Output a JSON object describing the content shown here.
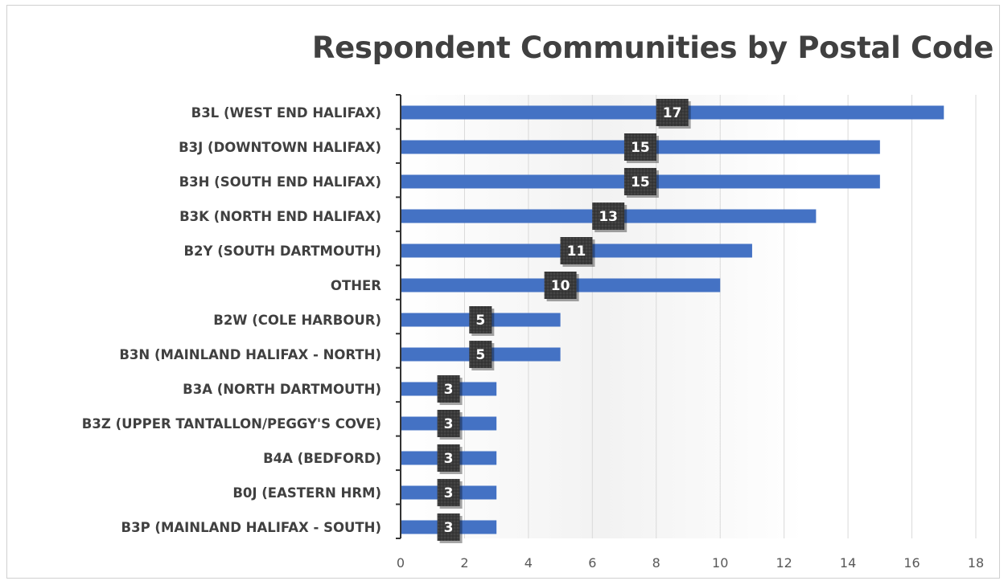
{
  "chart_data": {
    "type": "bar",
    "orientation": "horizontal",
    "title": "Respondent Communities by Postal Code",
    "categories": [
      "B3L (WEST END HALIFAX)",
      "B3J (DOWNTOWN HALIFAX)",
      "B3H (SOUTH END HALIFAX)",
      "B3K (NORTH END HALIFAX)",
      "B2Y (SOUTH DARTMOUTH)",
      "OTHER",
      "B2W (COLE HARBOUR)",
      "B3N (MAINLAND HALIFAX - NORTH)",
      "B3A (NORTH DARTMOUTH)",
      "B3Z (UPPER TANTALLON/PEGGY'S COVE)",
      "B4A (BEDFORD)",
      "B0J (EASTERN HRM)",
      "B3P (MAINLAND HALIFAX - SOUTH)"
    ],
    "values": [
      17,
      15,
      15,
      13,
      11,
      10,
      5,
      5,
      3,
      3,
      3,
      3,
      3
    ],
    "xlim": [
      0,
      18
    ],
    "xticks": [
      "0",
      "2",
      "4",
      "6",
      "8",
      "10",
      "12",
      "14",
      "16",
      "18"
    ],
    "xlabel": "",
    "ylabel": "",
    "grid": true,
    "legend": "none",
    "bar_color": "#4472c4",
    "label_color": "#404040"
  }
}
